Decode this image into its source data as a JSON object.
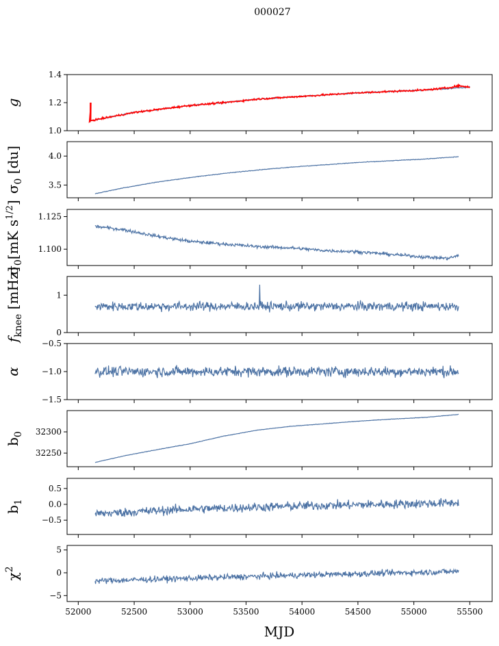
{
  "figure": {
    "title": "000027",
    "xlabel": "MJD"
  },
  "colors": {
    "series": "#4c72a4",
    "fit": "#ff0000",
    "fit_dark": "#7a2a2a"
  },
  "chart_data": [
    {
      "id": "g",
      "type": "line",
      "ylabel": "g",
      "ylim": [
        1.0,
        1.4
      ],
      "yticks": [
        1.0,
        1.2,
        1.4
      ],
      "ytick_labels": [
        "1.0",
        "1.2",
        "1.4"
      ],
      "xlim": [
        51900,
        55700
      ],
      "x_range": [
        52100,
        55500
      ],
      "x_ticks_labeled": false,
      "series": [
        {
          "color": "#4c72a4",
          "shape": "curve",
          "points": [
            [
              52100,
              1.07
            ],
            [
              52300,
              1.1
            ],
            [
              52500,
              1.13
            ],
            [
              52700,
              1.15
            ],
            [
              53000,
              1.18
            ],
            [
              53300,
              1.2
            ],
            [
              53600,
              1.225
            ],
            [
              53900,
              1.24
            ],
            [
              54200,
              1.255
            ],
            [
              54500,
              1.27
            ],
            [
              54800,
              1.28
            ],
            [
              55100,
              1.29
            ],
            [
              55300,
              1.3
            ],
            [
              55500,
              1.31
            ]
          ],
          "noise": 0.004
        },
        {
          "color": "#ff0000",
          "shape": "curve",
          "points": [
            [
              52100,
              1.07
            ],
            [
              52300,
              1.1
            ],
            [
              52500,
              1.13
            ],
            [
              52700,
              1.15
            ],
            [
              53000,
              1.18
            ],
            [
              53300,
              1.2
            ],
            [
              53600,
              1.225
            ],
            [
              53900,
              1.24
            ],
            [
              54200,
              1.255
            ],
            [
              54500,
              1.27
            ],
            [
              54800,
              1.28
            ],
            [
              55100,
              1.29
            ],
            [
              55300,
              1.305
            ],
            [
              55400,
              1.32
            ],
            [
              55500,
              1.31
            ]
          ],
          "noise": 0.006,
          "spike": {
            "x": 52110,
            "low": 1.06,
            "high": 1.2
          }
        }
      ]
    },
    {
      "id": "sigma0_du",
      "type": "line",
      "ylabel": "σ0 [du]",
      "ylim": [
        3.28,
        4.25
      ],
      "yticks": [
        3.5,
        4.0
      ],
      "ytick_labels": [
        "3.5",
        "4.0"
      ],
      "xlim": [
        51900,
        55700
      ],
      "x_range": [
        52150,
        55400
      ],
      "x_ticks_labeled": false,
      "series": [
        {
          "color": "#4c72a4",
          "shape": "curve",
          "points": [
            [
              52150,
              3.35
            ],
            [
              52400,
              3.45
            ],
            [
              52700,
              3.55
            ],
            [
              53000,
              3.63
            ],
            [
              53300,
              3.7
            ],
            [
              53600,
              3.76
            ],
            [
              53900,
              3.81
            ],
            [
              54200,
              3.85
            ],
            [
              54500,
              3.89
            ],
            [
              54800,
              3.92
            ],
            [
              55100,
              3.95
            ],
            [
              55400,
              3.99
            ]
          ],
          "noise": 0.005
        }
      ]
    },
    {
      "id": "sigma0_mk",
      "type": "line",
      "ylabel": "σ0[mK s^1/2]",
      "ylim": [
        1.0875,
        1.1305
      ],
      "yticks": [
        1.1,
        1.125
      ],
      "ytick_labels": [
        "1.100",
        "1.125"
      ],
      "xlim": [
        51900,
        55700
      ],
      "x_range": [
        52150,
        55400
      ],
      "x_ticks_labeled": false,
      "series": [
        {
          "color": "#4c72a4",
          "shape": "curve",
          "points": [
            [
              52150,
              1.1175
            ],
            [
              52400,
              1.115
            ],
            [
              52700,
              1.11
            ],
            [
              53000,
              1.106
            ],
            [
              53300,
              1.104
            ],
            [
              53600,
              1.102
            ],
            [
              53900,
              1.101
            ],
            [
              54200,
              1.099
            ],
            [
              54500,
              1.098
            ],
            [
              54800,
              1.096
            ],
            [
              55100,
              1.094
            ],
            [
              55300,
              1.093
            ],
            [
              55400,
              1.095
            ]
          ],
          "noise": 0.0012
        }
      ]
    },
    {
      "id": "fknee",
      "type": "line",
      "ylabel": "f_knee [mHz]",
      "ylim": [
        0.0,
        1.5
      ],
      "yticks": [
        0.0,
        1.0
      ],
      "ytick_labels": [
        "0",
        "1"
      ],
      "xlim": [
        51900,
        55700
      ],
      "x_range": [
        52150,
        55400
      ],
      "x_ticks_labeled": false,
      "series": [
        {
          "color": "#4c72a4",
          "shape": "noise",
          "mean": 0.7,
          "noise": 0.12,
          "peak": {
            "x": 53620,
            "y": 1.28
          }
        }
      ]
    },
    {
      "id": "alpha",
      "type": "line",
      "ylabel": "α",
      "ylim": [
        -1.5,
        -0.5
      ],
      "yticks": [
        -1.5,
        -1.0,
        -0.5
      ],
      "ytick_labels": [
        "−1.5",
        "−1.0",
        "−0.5"
      ],
      "xlim": [
        51900,
        55700
      ],
      "x_range": [
        52150,
        55400
      ],
      "x_ticks_labeled": false,
      "series": [
        {
          "color": "#4c72a4",
          "shape": "noise",
          "mean": -1.0,
          "noise": 0.09
        }
      ]
    },
    {
      "id": "b0",
      "type": "line",
      "ylabel": "b0",
      "ylim": [
        32218,
        32350
      ],
      "yticks": [
        32250,
        32300
      ],
      "ytick_labels": [
        "32250",
        "32300"
      ],
      "xlim": [
        51900,
        55700
      ],
      "x_range": [
        52150,
        55400
      ],
      "x_ticks_labeled": false,
      "series": [
        {
          "color": "#4c72a4",
          "shape": "curve",
          "points": [
            [
              52150,
              32228
            ],
            [
              52400,
              32243
            ],
            [
              52700,
              32258
            ],
            [
              53000,
              32272
            ],
            [
              53300,
              32290
            ],
            [
              53600,
              32304
            ],
            [
              53900,
              32313
            ],
            [
              54200,
              32319
            ],
            [
              54500,
              32325
            ],
            [
              54800,
              32330
            ],
            [
              55100,
              32334
            ],
            [
              55400,
              32341
            ]
          ],
          "noise": 0.5
        }
      ]
    },
    {
      "id": "b1",
      "type": "line",
      "ylabel": "b1",
      "ylim": [
        -0.95,
        0.82
      ],
      "yticks": [
        -0.5,
        0.0,
        0.5
      ],
      "ytick_labels": [
        "−0.5",
        "0.0",
        "0.5"
      ],
      "xlim": [
        51900,
        55700
      ],
      "x_range": [
        52150,
        55400
      ],
      "x_ticks_labeled": false,
      "series": [
        {
          "color": "#4c72a4",
          "shape": "noise",
          "trend": [
            [
              52150,
              -0.3
            ],
            [
              53000,
              -0.15
            ],
            [
              54000,
              -0.05
            ],
            [
              55400,
              0.05
            ]
          ],
          "noise": 0.14
        }
      ]
    },
    {
      "id": "chi2",
      "type": "line",
      "ylabel": "χ^2",
      "ylim": [
        -6.3,
        6.0
      ],
      "yticks": [
        -5,
        0,
        5
      ],
      "ytick_labels": [
        "−5",
        "0",
        "5"
      ],
      "xlim": [
        51900,
        55700
      ],
      "x_range": [
        52150,
        55400
      ],
      "x_ticks_labeled": true,
      "xticks": [
        52000,
        52500,
        53000,
        53500,
        54000,
        54500,
        55000,
        55500
      ],
      "xtick_labels": [
        "52000",
        "52500",
        "53000",
        "53500",
        "54000",
        "54500",
        "55000",
        "55500"
      ],
      "series": [
        {
          "color": "#4c72a4",
          "shape": "noise",
          "trend": [
            [
              52150,
              -1.8
            ],
            [
              53000,
              -1.2
            ],
            [
              54000,
              -0.5
            ],
            [
              55400,
              0.3
            ]
          ],
          "noise": 0.65
        }
      ]
    }
  ]
}
